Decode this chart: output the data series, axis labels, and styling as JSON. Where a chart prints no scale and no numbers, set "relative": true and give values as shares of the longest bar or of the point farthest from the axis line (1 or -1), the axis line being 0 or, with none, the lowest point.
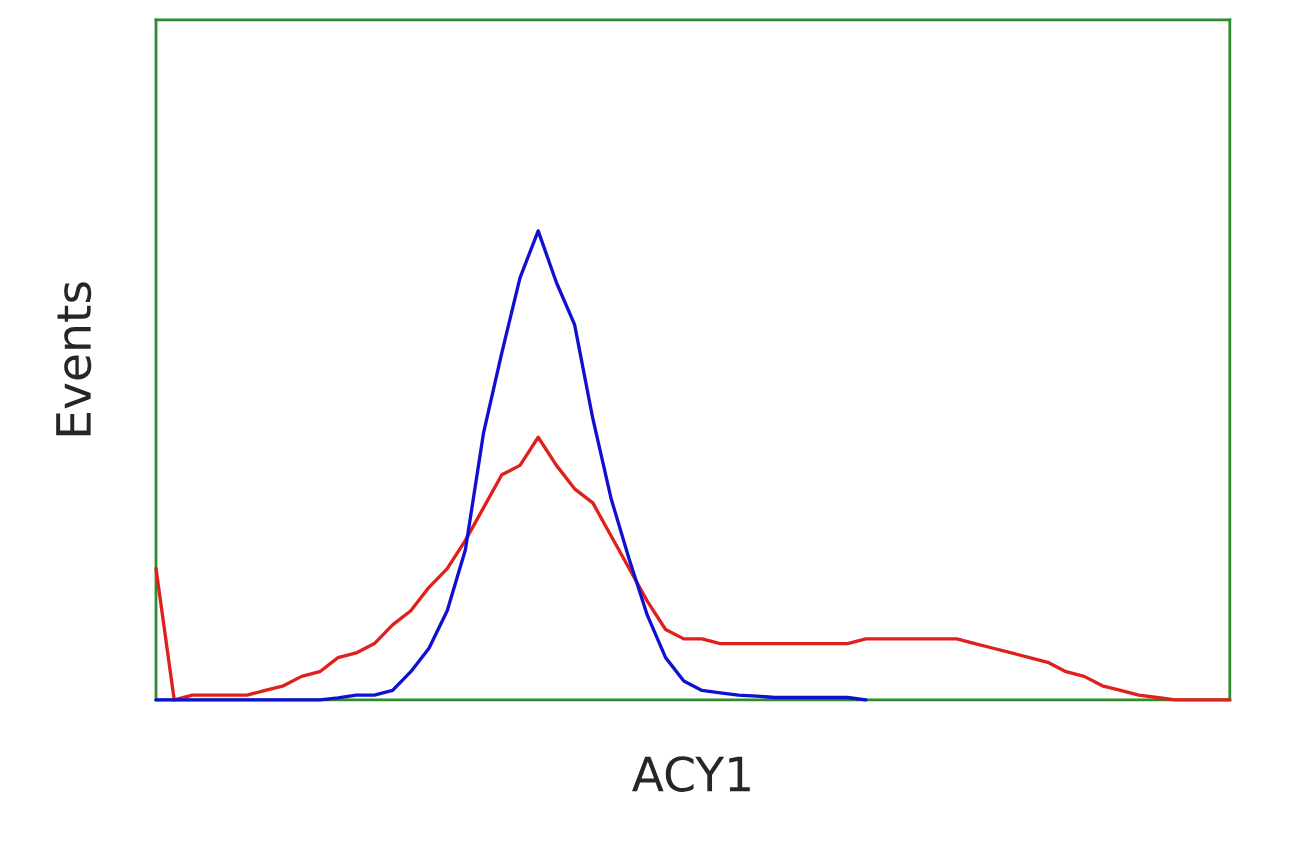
{
  "chart_data": {
    "type": "line",
    "xlabel": "ACY1",
    "ylabel": "Events",
    "relative": true,
    "legend": false,
    "categories": [
      null,
      null,
      null,
      null,
      null,
      null,
      null,
      null,
      null,
      null,
      null,
      null,
      null,
      null,
      null,
      null,
      null,
      null,
      null,
      null,
      null,
      null,
      null,
      null,
      null,
      null,
      null,
      null,
      null,
      null,
      null,
      null,
      null,
      null,
      null,
      null,
      null,
      null,
      null,
      null,
      null,
      null,
      null,
      null,
      null,
      null,
      null,
      null,
      null,
      null,
      null,
      null,
      null,
      null,
      null,
      null,
      null,
      null,
      null,
      null
    ],
    "series": [
      {
        "color": "#e0201a",
        "values": [
          0.28,
          0.0,
          0.01,
          0.01,
          0.01,
          0.01,
          0.02,
          0.03,
          0.05,
          0.06,
          0.09,
          0.1,
          0.12,
          0.16,
          0.19,
          0.24,
          0.28,
          0.34,
          0.41,
          0.48,
          0.5,
          0.56,
          0.5,
          0.45,
          0.42,
          0.35,
          0.28,
          0.21,
          0.15,
          0.13,
          0.13,
          0.12,
          0.12,
          0.12,
          0.12,
          0.12,
          0.12,
          0.12,
          0.12,
          0.13,
          0.13,
          0.13,
          0.13,
          0.13,
          0.13,
          0.12,
          0.11,
          0.1,
          0.09,
          0.08,
          0.06,
          0.05,
          0.03,
          0.02,
          0.01,
          0.005,
          0,
          0,
          0,
          0
        ]
      },
      {
        "color": "#1010d0",
        "values": [
          0,
          0,
          0,
          0,
          0,
          0,
          0,
          0,
          0,
          0,
          0.004,
          0.01,
          0.01,
          0.02,
          0.06,
          0.11,
          0.19,
          0.32,
          0.57,
          0.74,
          0.9,
          1.0,
          0.89,
          0.8,
          0.6,
          0.43,
          0.3,
          0.18,
          0.09,
          0.04,
          0.02,
          0.015,
          0.01,
          0.008,
          0.005,
          0.005,
          0.005,
          0.005,
          0.005,
          0,
          null,
          null,
          null,
          null,
          null,
          null,
          null,
          null,
          null,
          null,
          null,
          null,
          null,
          null,
          null,
          null,
          null,
          null,
          null,
          null
        ]
      }
    ]
  }
}
